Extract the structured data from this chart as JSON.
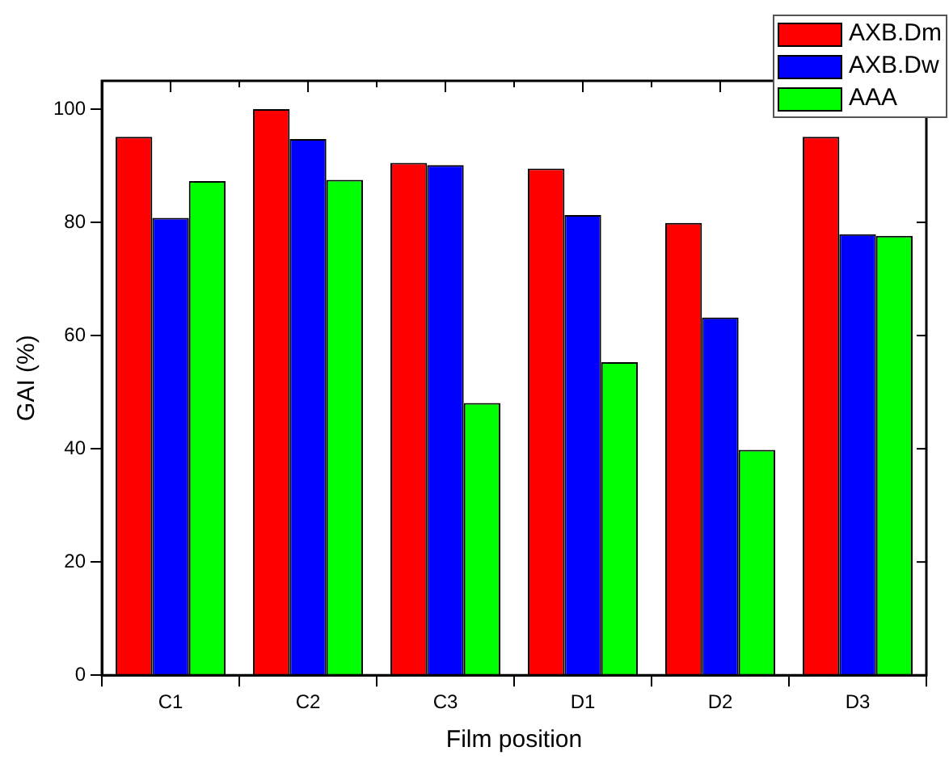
{
  "chart_data": {
    "type": "bar",
    "xlabel": "Film position",
    "ylabel": "GAI (%)",
    "categories": [
      "C1",
      "C2",
      "C3",
      "D1",
      "D2",
      "D3"
    ],
    "series": [
      {
        "name": "AXB.Dm",
        "color": "#ff0000",
        "values": [
          95.1,
          100,
          90.5,
          89.5,
          79.9,
          95.1
        ]
      },
      {
        "name": "AXB.Dw",
        "color": "#0000ff",
        "values": [
          80.8,
          94.7,
          90.1,
          81.3,
          63.2,
          77.9
        ]
      },
      {
        "name": "AAA",
        "color": "#00ff00",
        "values": [
          87.3,
          87.5,
          48.1,
          55.3,
          39.8,
          77.6
        ]
      }
    ],
    "ylim": [
      0,
      105
    ],
    "yticks": [
      0,
      20,
      40,
      60,
      80,
      100
    ],
    "grid": false,
    "legend": "top right"
  }
}
